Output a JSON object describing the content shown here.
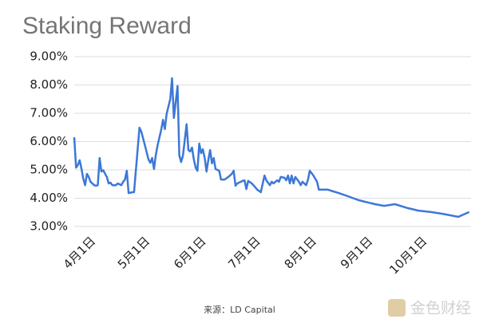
{
  "chart_data": {
    "type": "line",
    "title": "Staking Reward",
    "x": [
      -8,
      -7,
      -6,
      -5,
      -4,
      -3,
      -2,
      -1,
      0,
      1,
      3,
      4,
      5,
      6,
      7,
      8,
      10,
      11,
      12,
      13,
      15,
      16,
      18,
      19,
      20,
      21,
      22,
      24,
      25,
      28,
      29,
      31,
      33,
      34,
      35,
      36,
      37,
      38,
      40,
      41,
      42,
      43,
      45,
      46,
      47,
      49,
      50,
      51,
      52,
      54,
      55,
      56,
      57,
      58,
      59,
      60,
      61,
      62,
      63,
      64,
      65,
      66,
      67,
      68,
      69,
      70,
      72,
      73,
      75,
      77,
      79,
      80,
      81,
      82,
      84,
      85,
      86,
      87,
      88,
      90,
      92,
      93,
      95,
      97,
      98,
      100,
      101,
      102,
      104,
      105,
      106,
      108,
      109,
      110,
      111,
      112,
      113,
      114,
      116,
      117,
      118,
      120,
      121,
      122,
      124,
      126,
      127,
      129,
      132,
      135,
      138,
      143,
      149,
      154,
      158,
      163,
      169,
      176,
      182,
      189,
      195,
      204,
      210
    ],
    "values": [
      6.15,
      5.08,
      5.17,
      5.34,
      5.03,
      4.69,
      4.46,
      4.86,
      4.75,
      4.58,
      4.46,
      4.44,
      4.46,
      5.42,
      4.94,
      4.99,
      4.75,
      4.52,
      4.55,
      4.46,
      4.46,
      4.52,
      4.46,
      4.58,
      4.66,
      4.97,
      4.18,
      4.21,
      4.21,
      6.49,
      6.35,
      5.87,
      5.37,
      5.25,
      5.42,
      5.03,
      5.51,
      5.87,
      6.41,
      6.77,
      6.44,
      6.97,
      7.51,
      8.24,
      6.83,
      7.96,
      5.51,
      5.28,
      5.51,
      6.61,
      5.7,
      5.65,
      5.79,
      5.37,
      5.08,
      4.97,
      5.93,
      5.59,
      5.73,
      5.42,
      4.94,
      5.34,
      5.7,
      5.23,
      5.42,
      5.03,
      4.97,
      4.66,
      4.66,
      4.75,
      4.86,
      4.97,
      4.44,
      4.52,
      4.58,
      4.61,
      4.63,
      4.32,
      4.61,
      4.52,
      4.38,
      4.3,
      4.21,
      4.8,
      4.63,
      4.46,
      4.58,
      4.52,
      4.63,
      4.58,
      4.75,
      4.72,
      4.63,
      4.8,
      4.52,
      4.8,
      4.52,
      4.75,
      4.58,
      4.46,
      4.58,
      4.46,
      4.66,
      4.97,
      4.8,
      4.58,
      4.3,
      4.3,
      4.3,
      4.24,
      4.18,
      4.07,
      3.93,
      3.85,
      3.79,
      3.73,
      3.79,
      3.65,
      3.56,
      3.51,
      3.45,
      3.34,
      3.51
    ],
    "color": "#3c78d8",
    "xlim": [
      -8,
      211
    ],
    "xticks": [
      {
        "value": 0,
        "label": "4月1日"
      },
      {
        "value": 30,
        "label": "5月1日"
      },
      {
        "value": 61,
        "label": "6月1日"
      },
      {
        "value": 91,
        "label": "7月1日"
      },
      {
        "value": 122,
        "label": "8月1日"
      },
      {
        "value": 153,
        "label": "9月1日"
      },
      {
        "value": 183,
        "label": "10月1日"
      }
    ],
    "ylim": [
      3,
      9
    ],
    "yticks": [
      {
        "value": 3,
        "label": "3.00%"
      },
      {
        "value": 4,
        "label": "4.00%"
      },
      {
        "value": 5,
        "label": "5.00%"
      },
      {
        "value": 6,
        "label": "6.00%"
      },
      {
        "value": 7,
        "label": "7.00%"
      },
      {
        "value": 8,
        "label": "8.00%"
      },
      {
        "value": 9,
        "label": "9.00%"
      }
    ],
    "grid": true,
    "source": "来源：LD Capital",
    "watermark": "金色财经"
  }
}
